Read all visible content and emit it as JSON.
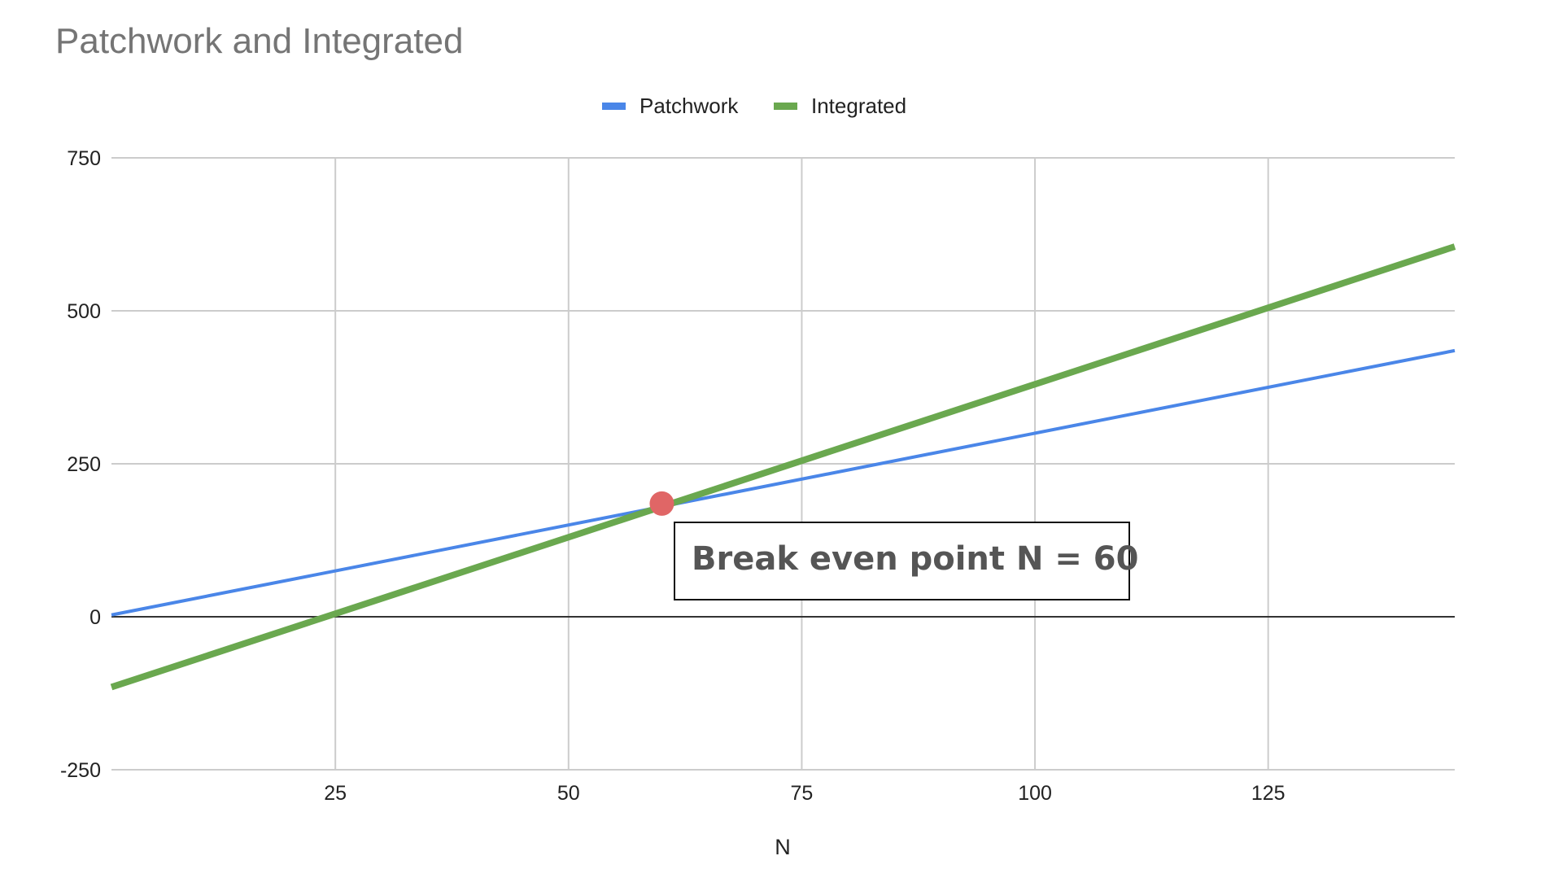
{
  "chart_data": {
    "type": "line",
    "title": "Patchwork and Integrated",
    "xlabel": "N",
    "ylabel": "",
    "xlim": [
      1,
      145
    ],
    "ylim": [
      -250,
      750
    ],
    "xticks": [
      25,
      50,
      75,
      100,
      125
    ],
    "yticks": [
      -250,
      0,
      250,
      500,
      750
    ],
    "grid": true,
    "legend_position": "top-center",
    "series": [
      {
        "name": "Patchwork",
        "color": "#4a86e8",
        "x": [
          1,
          145
        ],
        "y": [
          3,
          435
        ]
      },
      {
        "name": "Integrated",
        "color": "#6aa84f",
        "x": [
          1,
          145
        ],
        "y": [
          -115,
          605
        ]
      }
    ],
    "marker": {
      "x": 60,
      "y": 185,
      "color": "#e06666"
    },
    "annotation": {
      "text": "Break even point N = 60"
    }
  }
}
